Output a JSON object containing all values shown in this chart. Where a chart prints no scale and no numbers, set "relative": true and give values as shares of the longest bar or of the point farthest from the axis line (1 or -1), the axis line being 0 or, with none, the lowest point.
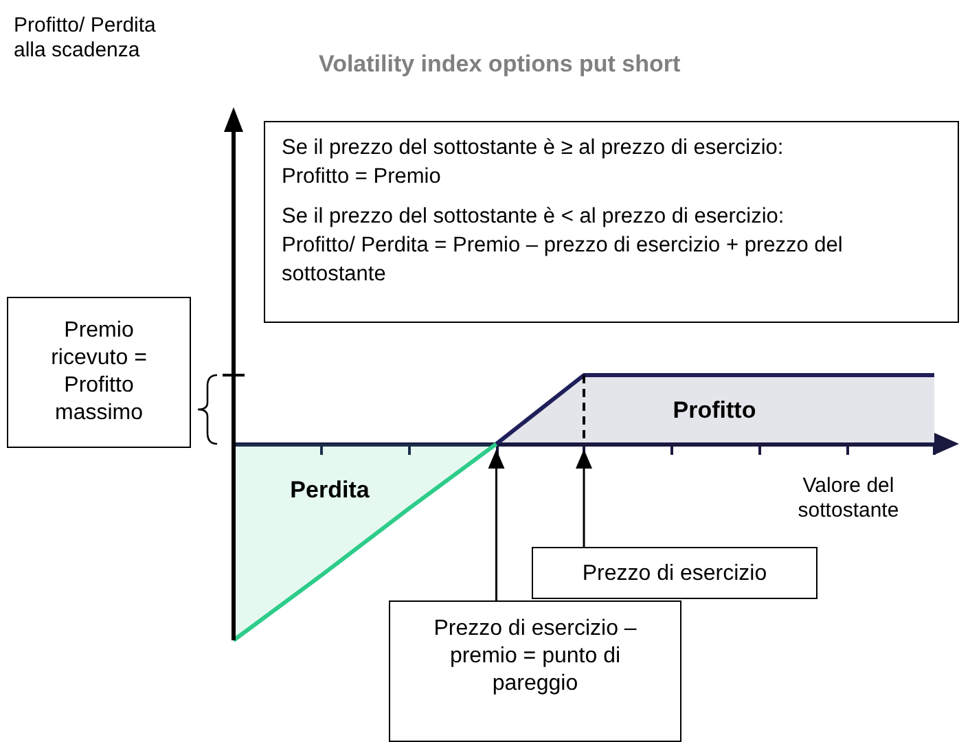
{
  "chart_data": {
    "type": "area",
    "relative": true,
    "title": "Volatility index options put short",
    "xlabel": "Valore del sottostante",
    "categories": [
      null,
      null,
      null,
      null,
      null,
      null,
      null,
      null,
      null
    ],
    "series": [
      {
        "color": "#2ecc8a",
        "values": [
          -1,
          -0.67,
          -0.33,
          0,
          null,
          null,
          null,
          null,
          null
        ]
      },
      {
        "color": "#1f1f5a",
        "values": [
          null,
          null,
          null,
          0,
          0.35,
          0.35,
          0.35,
          0.35,
          0.35
        ]
      }
    ],
    "annotations": [
      "Profitto/ Perdita alla scadenza",
      "Se il prezzo del sottostante è ≥ al prezzo di esercizio:",
      "Profitto = Premio",
      "Se il prezzo del sottostante è < al prezzo di esercizio:",
      "Profitto/ Perdita = Premio – prezzo di esercizio + prezzo del sottostante",
      "Premio ricevuto = Profitto massimo",
      "Perdita",
      "Profitto",
      "Prezzo di esercizio",
      "Prezzo di esercizio – premio = punto di pareggio"
    ]
  }
}
